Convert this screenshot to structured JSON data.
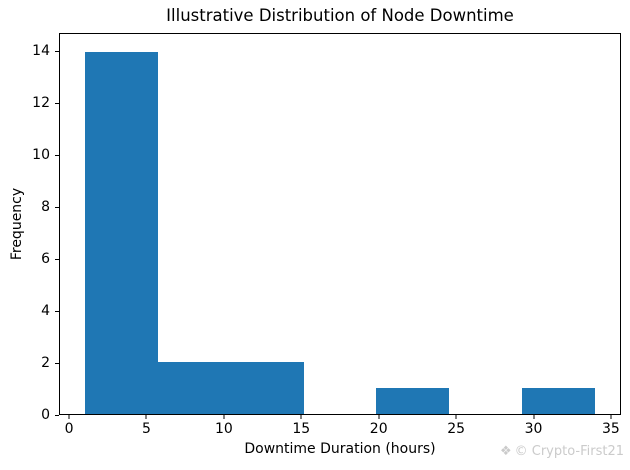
{
  "figure": {
    "watermark": {
      "icon": "❖",
      "text": "© Crypto-First21",
      "color": "#cbcbcb"
    }
  },
  "chart_data": {
    "type": "bar",
    "subtype": "histogram",
    "title": "Illustrative Distribution of Node Downtime",
    "xlabel": "Downtime Duration (hours)",
    "ylabel": "Frequency",
    "bin_edges": [
      1.0,
      5.71,
      10.43,
      15.14,
      19.86,
      24.57,
      29.29,
      34.0
    ],
    "counts": [
      14,
      2,
      2,
      0,
      1,
      0,
      1
    ],
    "bar_color": "#1f77b4",
    "xlim": [
      -0.65,
      35.65
    ],
    "ylim": [
      0,
      14.7
    ],
    "xticks": [
      0,
      5,
      10,
      15,
      20,
      25,
      30,
      35
    ],
    "yticks": [
      0,
      2,
      4,
      6,
      8,
      10,
      12,
      14
    ],
    "grid": false,
    "legend": null,
    "text_color": "#000000",
    "spine_color": "#000000"
  }
}
